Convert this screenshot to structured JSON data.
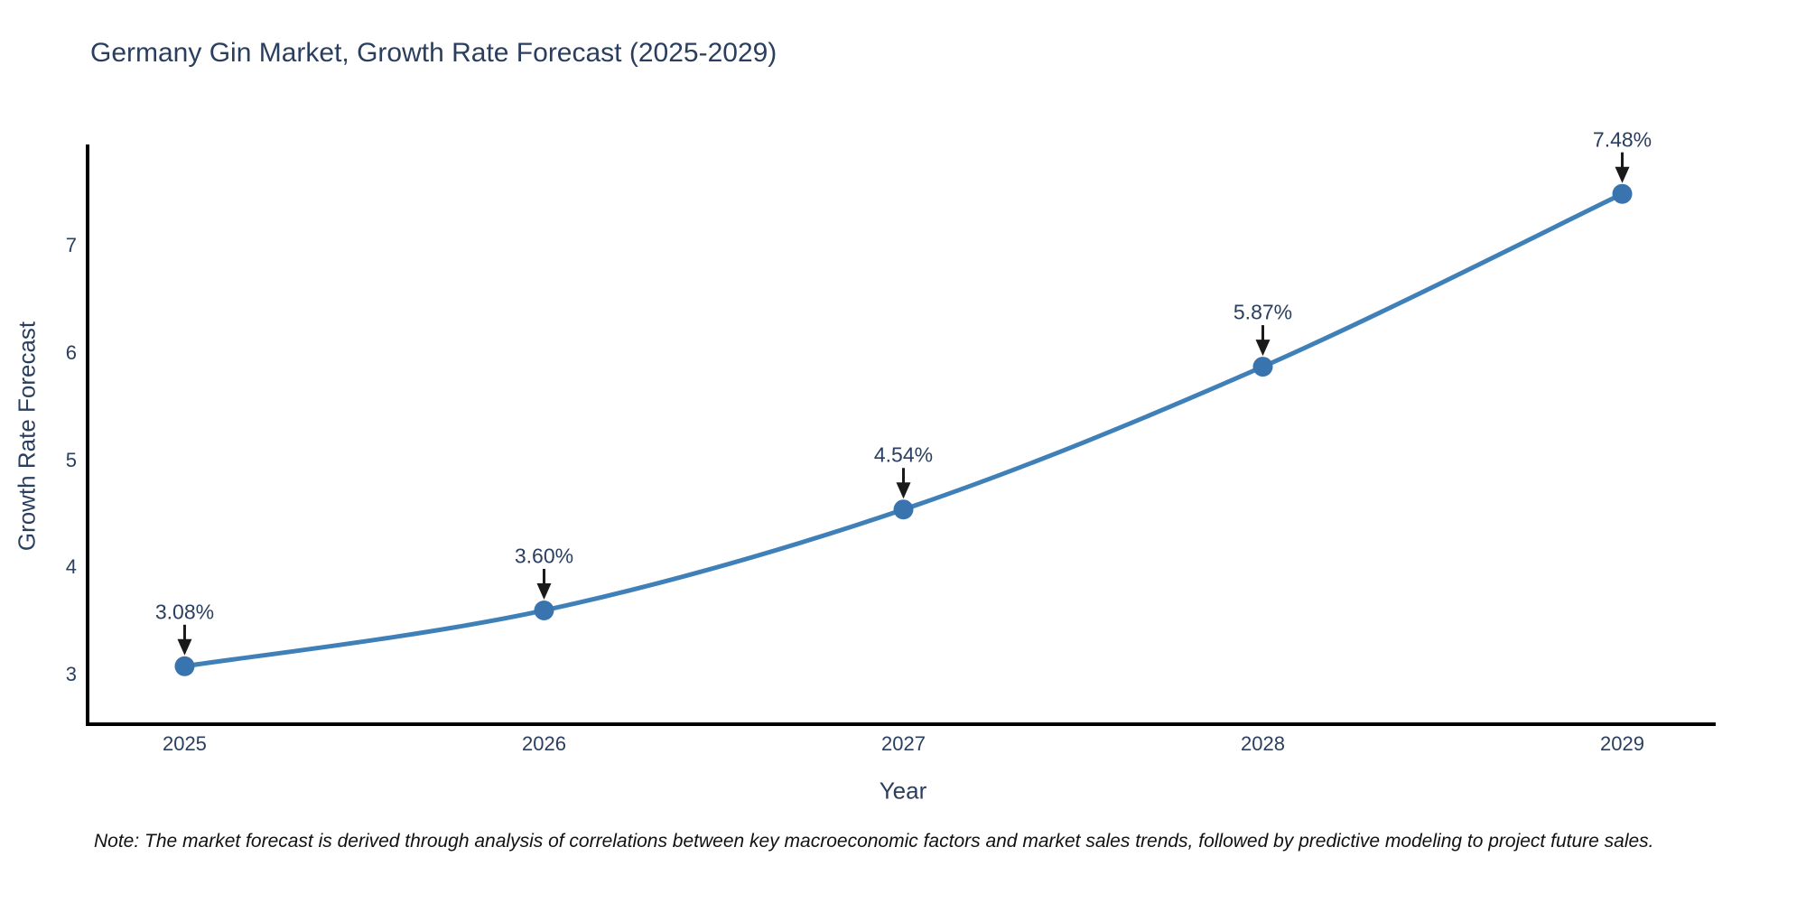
{
  "title": "Germany Gin Market, Growth Rate Forecast (2025-2029)",
  "note": "Note: The market forecast is derived through analysis of correlations between key macroeconomic factors and market sales trends, followed by predictive modeling to project future sales.",
  "chart_data": {
    "type": "line",
    "title": "Germany Gin Market, Growth Rate Forecast (2025-2029)",
    "xlabel": "Year",
    "ylabel": "Growth Rate Forecast",
    "x": [
      2025,
      2026,
      2027,
      2028,
      2029
    ],
    "values": [
      3.08,
      3.6,
      4.54,
      5.87,
      7.48
    ],
    "point_labels": [
      "3.08%",
      "3.60%",
      "4.54%",
      "5.87%",
      "7.48%"
    ],
    "x_tick_labels": [
      "2025",
      "2026",
      "2027",
      "2028",
      "2029"
    ],
    "y_ticks": [
      3,
      4,
      5,
      6,
      7
    ],
    "xlim": [
      2024.73,
      2029.26
    ],
    "ylim": [
      2.54,
      7.94
    ],
    "grid": false,
    "legend": "none",
    "line_shape": "spline",
    "colors": {
      "line": "#4080b8",
      "marker": "#3a74ae",
      "axis": "#000000",
      "arrow": "#1a1a1a",
      "text": "#2a3f5f",
      "background": "#ffffff"
    }
  }
}
